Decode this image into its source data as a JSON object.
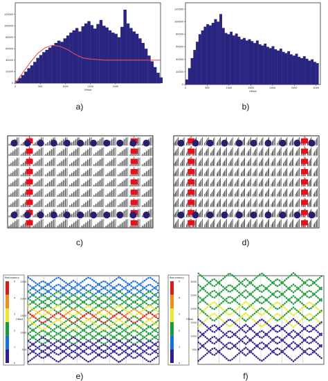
{
  "figure": {
    "panel_labels": [
      "a)",
      "b)",
      "c)",
      "d)",
      "e)",
      "f)"
    ]
  },
  "colors": {
    "bar": "#2a2580",
    "curve": "#e8505a",
    "red_receiver": "#e8101a",
    "source_dot": "#2a1f6e",
    "grid_line": "#222222",
    "scale": [
      "#2b1f8c",
      "#1a6fd6",
      "#1a9a3a",
      "#e8e830",
      "#e89020",
      "#d0201a"
    ]
  },
  "chart_data": [
    {
      "type": "bar",
      "panel": "a)",
      "xlabel": "Offset",
      "ylabel": "",
      "xlim": [
        0,
        2900
      ],
      "ylim": [
        0,
        140000
      ],
      "x_ticks": [
        "0",
        "500",
        "1000",
        "1500",
        "2000"
      ],
      "y_ticks": [
        "0",
        "20000",
        "40000",
        "60000",
        "80000",
        "100000",
        "120000"
      ],
      "bin_width": 60,
      "values": [
        4000,
        9000,
        14000,
        20000,
        26000,
        31000,
        37000,
        44000,
        49000,
        54000,
        58000,
        62000,
        66000,
        70000,
        74000,
        72000,
        78000,
        83000,
        88000,
        92000,
        96000,
        90000,
        99000,
        104000,
        108000,
        101000,
        95000,
        103000,
        110000,
        100000,
        97000,
        92000,
        88000,
        86000,
        80000,
        98000,
        128000,
        104000,
        96000,
        90000,
        86000,
        78000,
        70000,
        60000,
        48000,
        38000,
        28000,
        18000,
        10000,
        3000
      ],
      "curve": {
        "name": "",
        "x": [
          0,
          150,
          300,
          450,
          600,
          750,
          900,
          1050,
          1200,
          1350,
          1500,
          1650,
          1800,
          2100,
          2400,
          2900
        ],
        "y": [
          0,
          18000,
          36000,
          52000,
          62000,
          66000,
          64000,
          58000,
          50000,
          44000,
          42000,
          41000,
          40000,
          40000,
          40000,
          40000
        ]
      }
    },
    {
      "type": "bar",
      "panel": "b)",
      "xlabel": "Offset",
      "ylabel": "",
      "xlim": [
        0,
        3100
      ],
      "ylim": [
        0,
        130000
      ],
      "x_ticks": [
        "0",
        "500",
        "1000",
        "1500",
        "2000",
        "2500",
        "3000"
      ],
      "y_ticks": [
        "0",
        "20000",
        "40000",
        "60000",
        "80000",
        "100000",
        "120000"
      ],
      "bin_width": 60,
      "values": [
        8000,
        26000,
        42000,
        55000,
        68000,
        80000,
        86000,
        92000,
        96000,
        94000,
        98000,
        104000,
        100000,
        112000,
        90000,
        82000,
        80000,
        84000,
        78000,
        81000,
        76000,
        72000,
        74000,
        70000,
        72000,
        69000,
        66000,
        70000,
        64000,
        62000,
        65000,
        60000,
        58000,
        61000,
        56000,
        54000,
        57000,
        52000,
        50000,
        53000,
        48000,
        46000,
        49000,
        44000,
        42000,
        45000,
        41000,
        38000,
        40000,
        36000,
        34000
      ]
    },
    {
      "type": "heatmap",
      "panel": "e)",
      "ylabel": "Offset",
      "y_ticks": [
        "2500",
        "2000",
        "1500",
        "1000",
        "500"
      ],
      "colorbar": {
        "title": "Redundancy",
        "ticks": [
          "5",
          "4",
          "3",
          "2",
          "1",
          "0"
        ]
      }
    },
    {
      "type": "heatmap",
      "panel": "f)",
      "ylabel": "Offset",
      "y_ticks": [
        "3000",
        "2500",
        "2000",
        "1500",
        "1000",
        "500"
      ],
      "colorbar": {
        "title": "Redundancy",
        "ticks": [
          "5",
          "4",
          "3",
          "2",
          "1",
          "0"
        ]
      }
    }
  ]
}
